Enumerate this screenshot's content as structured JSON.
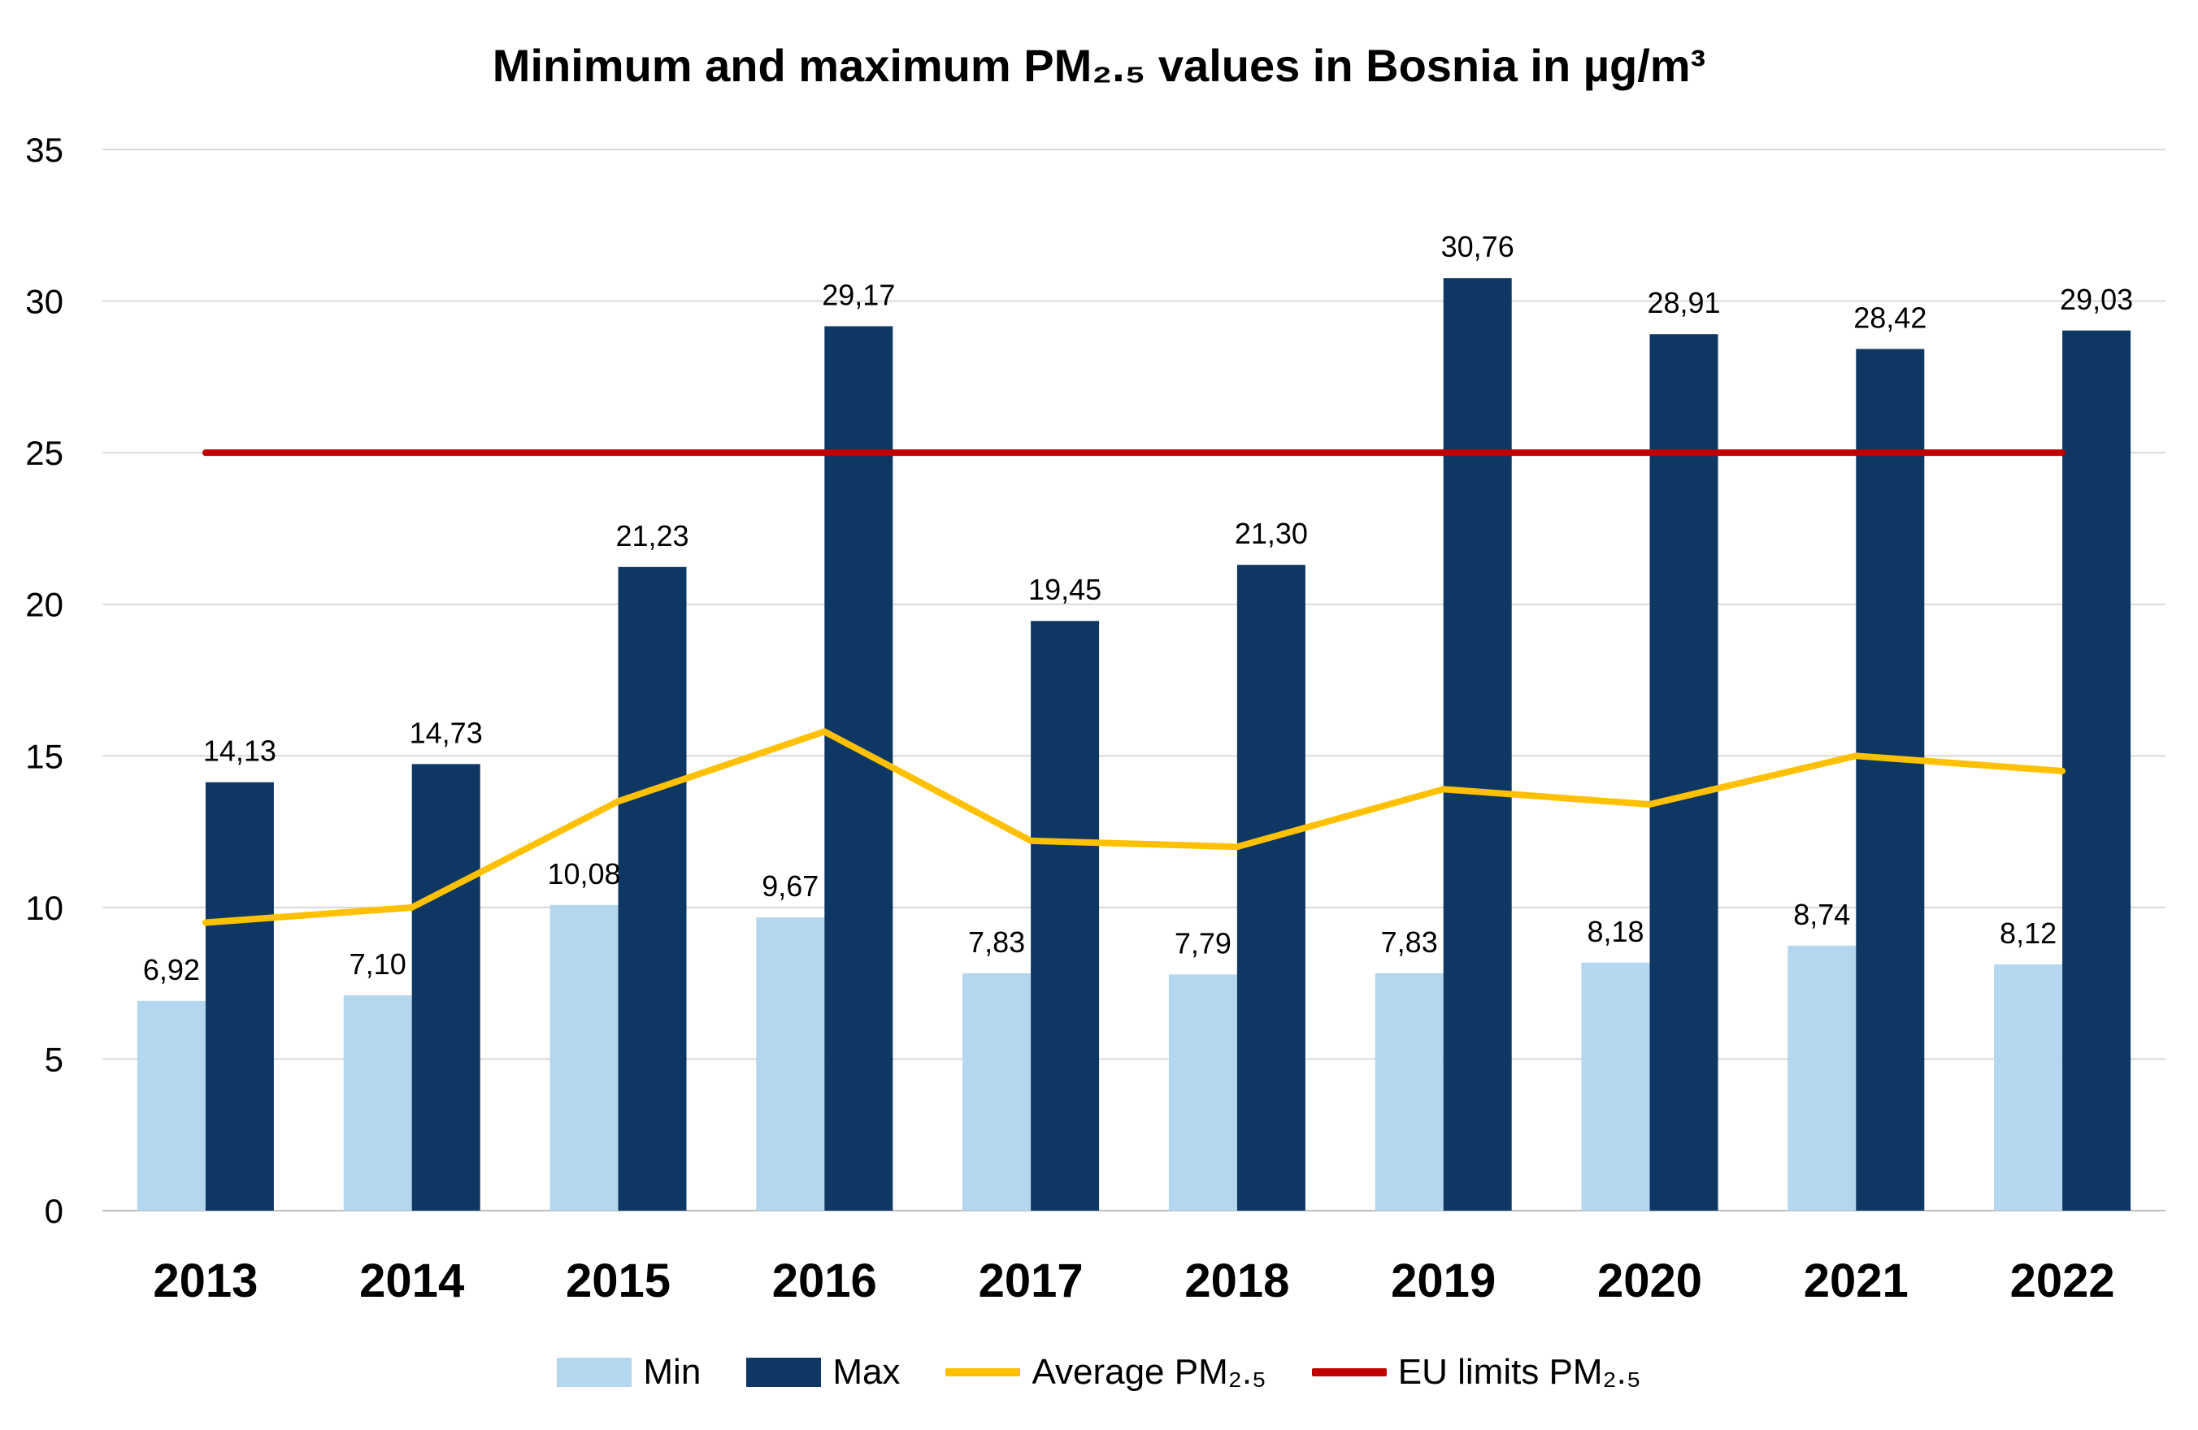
{
  "chart_data": {
    "type": "bar",
    "title": "Minimum and maximum PM₂.₅ values in Bosnia in µg/m³",
    "categories": [
      "2013",
      "2014",
      "2015",
      "2016",
      "2017",
      "2018",
      "2019",
      "2020",
      "2021",
      "2022"
    ],
    "series": [
      {
        "name": "Min",
        "type": "bar",
        "color": "#B4D6EE",
        "values": [
          6.92,
          7.1,
          10.08,
          9.67,
          7.83,
          7.79,
          7.83,
          8.18,
          8.74,
          8.12
        ],
        "labels": [
          "6,92",
          "7,10",
          "10,08",
          "9,67",
          "7,83",
          "7,79",
          "7,83",
          "8,18",
          "8,74",
          "8,12"
        ]
      },
      {
        "name": "Max",
        "type": "bar",
        "color": "#0E3763",
        "values": [
          14.13,
          14.73,
          21.23,
          29.17,
          19.45,
          21.3,
          30.76,
          28.91,
          28.42,
          29.03
        ],
        "labels": [
          "14,13",
          "14,73",
          "21,23",
          "29,17",
          "19,45",
          "21,30",
          "30,76",
          "28,91",
          "28,42",
          "29,03"
        ]
      },
      {
        "name": "Average PM₂.₅",
        "type": "line",
        "color": "#FFC000",
        "values": [
          9.5,
          10.0,
          13.5,
          15.8,
          12.2,
          12.0,
          13.9,
          13.4,
          15.0,
          14.5
        ]
      },
      {
        "name": "EU limits PM₂.₅",
        "type": "line",
        "color": "#C00000",
        "values": [
          25,
          25,
          25,
          25,
          25,
          25,
          25,
          25,
          25,
          25
        ]
      }
    ],
    "ylim": [
      0,
      35
    ],
    "yticks": [
      "0",
      "5",
      "10",
      "15",
      "20",
      "25",
      "30",
      "35"
    ],
    "grid": true,
    "legend": "bottom"
  }
}
